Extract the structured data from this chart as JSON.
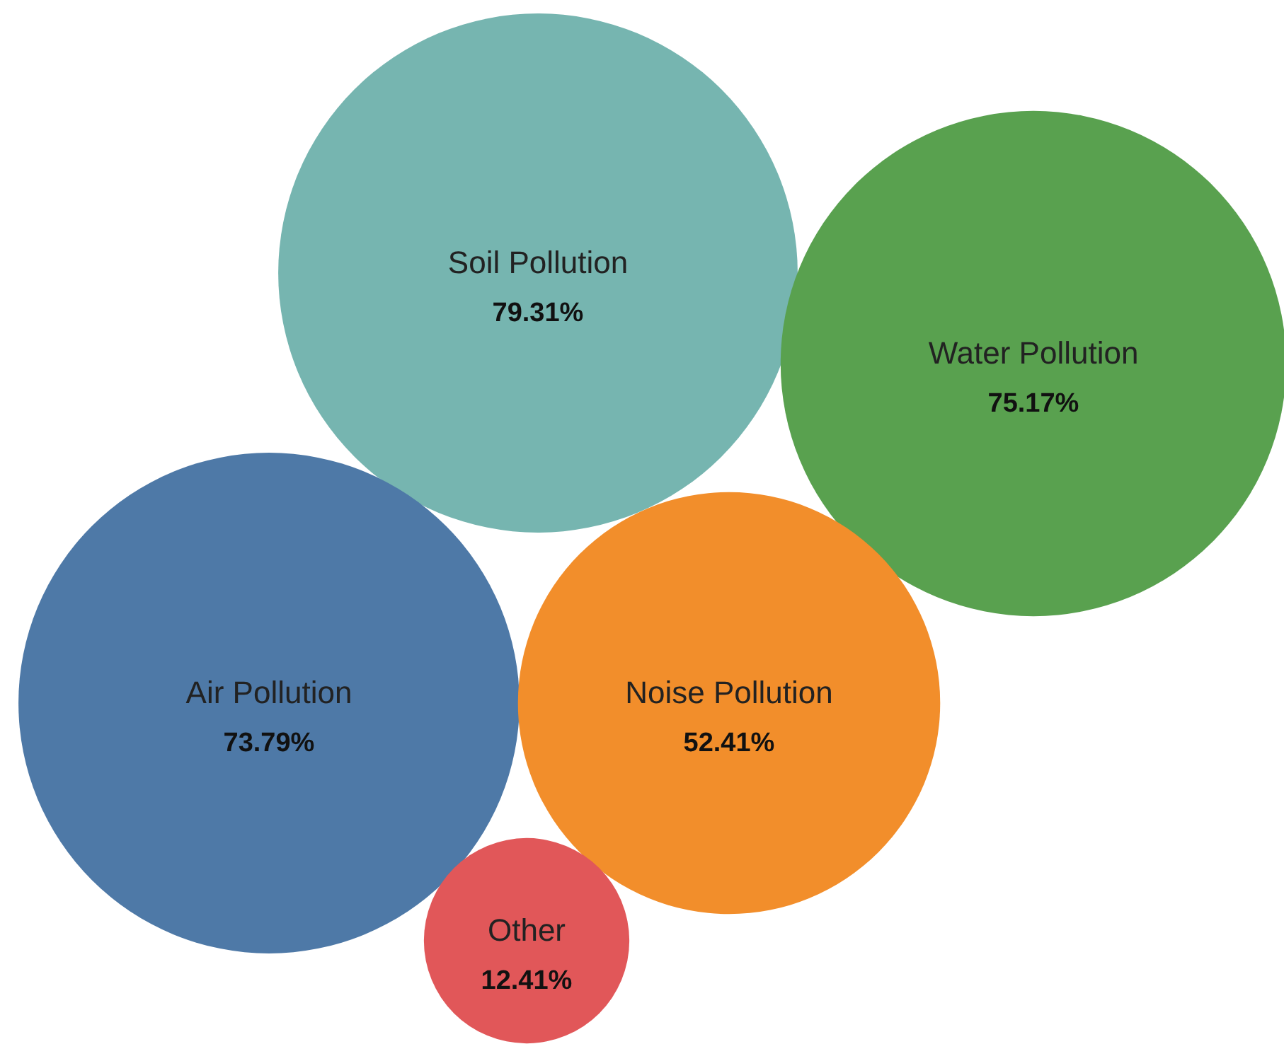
{
  "chart_data": {
    "type": "other",
    "categories": [
      "Soil Pollution",
      "Water Pollution",
      "Air Pollution",
      "Noise Pollution",
      "Other"
    ],
    "values": [
      79.31,
      75.17,
      73.79,
      52.41,
      12.41
    ],
    "value_labels": [
      "79.31%",
      "75.17%",
      "73.79%",
      "52.41%",
      "12.41%"
    ],
    "colors": [
      "#76b5b0",
      "#59a14f",
      "#4e79a7",
      "#f28e2b",
      "#e15759"
    ]
  }
}
